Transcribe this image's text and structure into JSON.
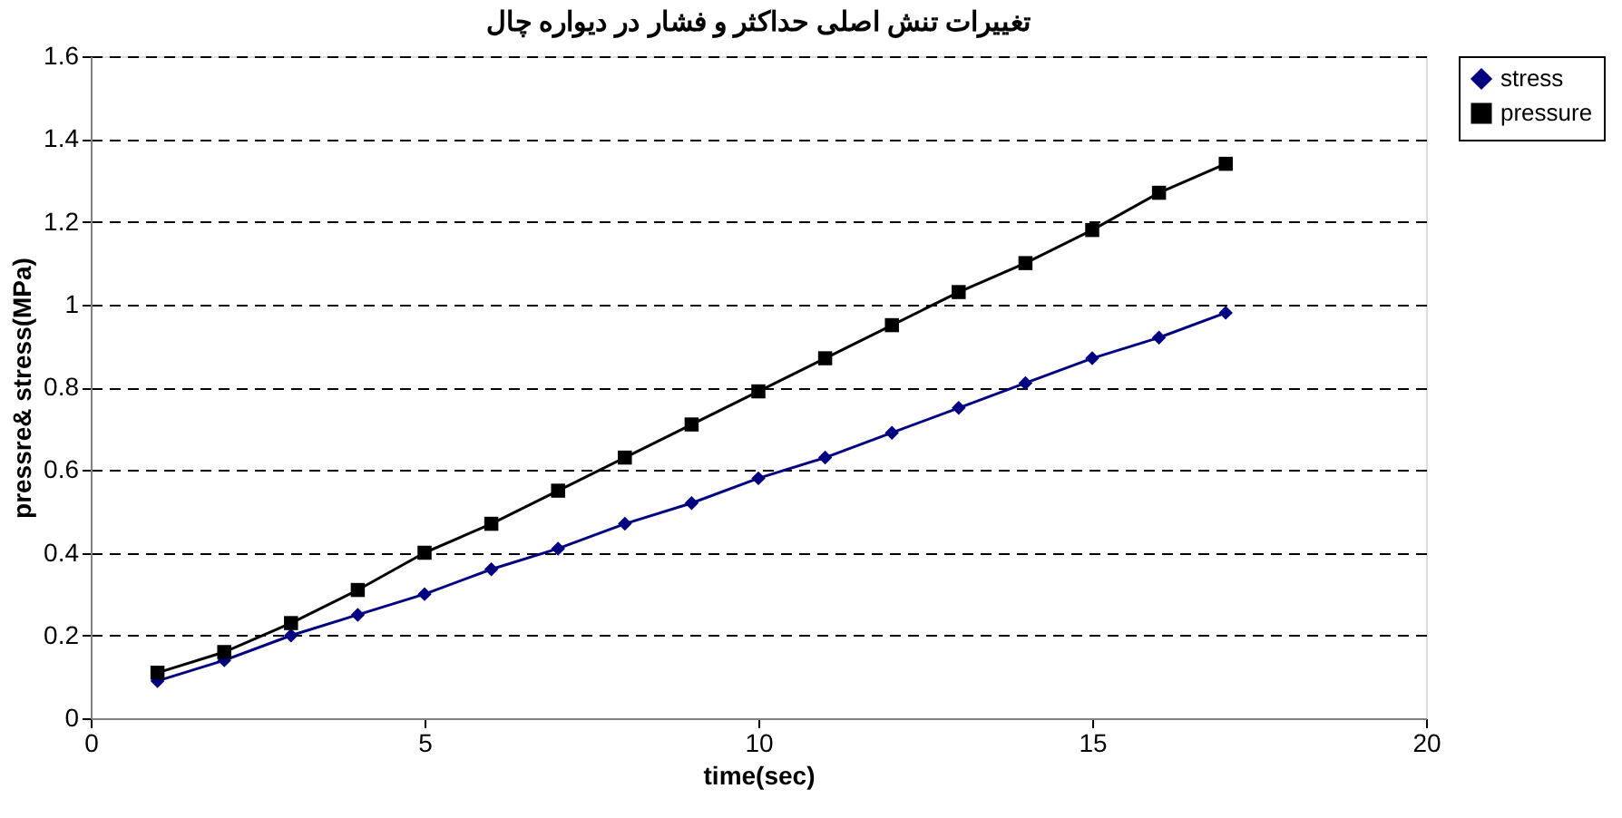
{
  "chart_data": {
    "type": "line",
    "title": "تغییرات تنش اصلی حداکثر و فشار در دیواره چال",
    "xlabel": "time(sec)",
    "ylabel": "pressre& stress(MPa)",
    "x": [
      1,
      2,
      3,
      4,
      5,
      6,
      7,
      8,
      9,
      10,
      11,
      12,
      13,
      14,
      15,
      16,
      17
    ],
    "series": [
      {
        "name": "stress",
        "color": "#000080",
        "marker": "diamond",
        "values": [
          0.09,
          0.14,
          0.2,
          0.25,
          0.3,
          0.36,
          0.41,
          0.47,
          0.52,
          0.58,
          0.63,
          0.69,
          0.75,
          0.81,
          0.87,
          0.92,
          0.98
        ]
      },
      {
        "name": "pressure",
        "color": "#000000",
        "marker": "square",
        "values": [
          0.11,
          0.16,
          0.23,
          0.31,
          0.4,
          0.47,
          0.55,
          0.63,
          0.71,
          0.79,
          0.87,
          0.95,
          1.03,
          1.1,
          1.18,
          1.27,
          1.34
        ]
      }
    ],
    "xlim": [
      0,
      20
    ],
    "xticks": [
      0,
      5,
      10,
      15,
      20
    ],
    "ylim": [
      0,
      1.6
    ],
    "yticks": [
      0,
      0.2,
      0.4,
      0.6,
      0.8,
      1,
      1.2,
      1.4,
      1.6
    ],
    "grid": "y",
    "legend": "right",
    "line_style": "solid"
  }
}
